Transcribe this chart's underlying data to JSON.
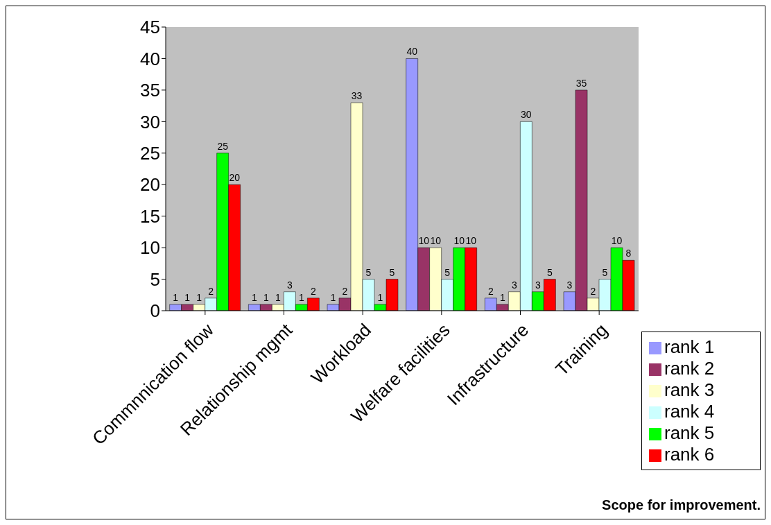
{
  "chart_data": {
    "type": "bar",
    "categories": [
      "Commnnication flow",
      "Relationship mgmt",
      "Workload",
      "Welfare facilities",
      "Infrastructure",
      "Training"
    ],
    "series": [
      {
        "name": "rank 1",
        "color": "#9999ff",
        "values": [
          1,
          1,
          1,
          40,
          2,
          3
        ]
      },
      {
        "name": "rank 2",
        "color": "#993366",
        "values": [
          1,
          1,
          2,
          10,
          1,
          35
        ]
      },
      {
        "name": "rank 3",
        "color": "#ffffcc",
        "values": [
          1,
          1,
          33,
          10,
          3,
          2
        ]
      },
      {
        "name": "rank 4",
        "color": "#ccffff",
        "values": [
          2,
          3,
          5,
          5,
          30,
          5
        ]
      },
      {
        "name": "rank 5",
        "color": "#00ff00",
        "values": [
          25,
          1,
          1,
          10,
          3,
          10
        ]
      },
      {
        "name": "rank 6",
        "color": "#ff0000",
        "values": [
          20,
          2,
          5,
          10,
          5,
          8
        ]
      }
    ],
    "ylim": [
      0,
      45
    ],
    "yticks": [
      0,
      5,
      10,
      15,
      20,
      25,
      30,
      35,
      40,
      45
    ],
    "data_labels": true,
    "legend": "right",
    "annotations": [
      "Scope for improvement."
    ]
  }
}
